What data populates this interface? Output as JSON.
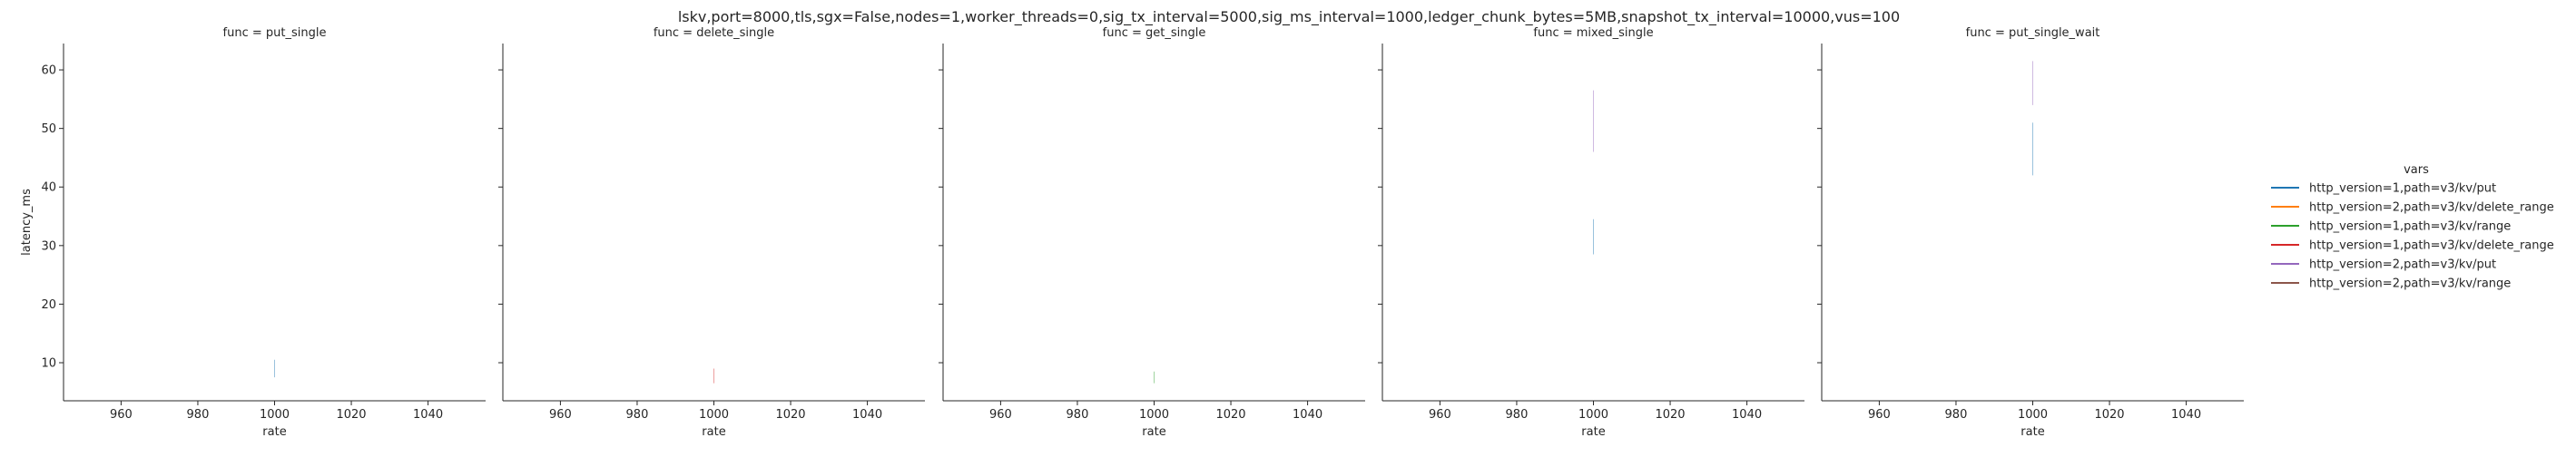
{
  "title": "lskv,port=8000,tls,sgx=False,nodes=1,worker_threads=0,sig_tx_interval=5000,sig_ms_interval=1000,ledger_chunk_bytes=5MB,snapshot_tx_interval=10000,vus=100",
  "chart_data": {
    "type": "line",
    "title": "lskv,port=8000,tls,sgx=False,nodes=1,worker_threads=0,sig_tx_interval=5000,sig_ms_interval=1000,ledger_chunk_bytes=5MB,snapshot_tx_interval=10000,vus=100",
    "xlabel": "rate",
    "ylabel": "latency_ms",
    "xlim": [
      945,
      1055
    ],
    "ylim": [
      3.5,
      64.5
    ],
    "xticks": [
      960,
      980,
      1000,
      1020,
      1040
    ],
    "yticks": [
      10,
      20,
      30,
      40,
      50,
      60
    ],
    "grid": false,
    "legend": {
      "title": "vars",
      "placement": "right",
      "entries": [
        {
          "label": "http_version=1,path=v3/kv/put",
          "color": "#1f77b4"
        },
        {
          "label": "http_version=2,path=v3/kv/delete_range",
          "color": "#ff7f0e"
        },
        {
          "label": "http_version=1,path=v3/kv/range",
          "color": "#2ca02c"
        },
        {
          "label": "http_version=1,path=v3/kv/delete_range",
          "color": "#d62728"
        },
        {
          "label": "http_version=2,path=v3/kv/put",
          "color": "#9467bd"
        },
        {
          "label": "http_version=2,path=v3/kv/range",
          "color": "#8c564b"
        }
      ]
    },
    "panels": [
      {
        "title": "func = put_single",
        "segments": [
          {
            "x": 1000,
            "y0": 7.5,
            "y1": 10.5,
            "color": "#1f77b4"
          }
        ]
      },
      {
        "title": "func = delete_single",
        "segments": [
          {
            "x": 1000,
            "y0": 6.5,
            "y1": 9.0,
            "color": "#d62728"
          }
        ]
      },
      {
        "title": "func = get_single",
        "segments": [
          {
            "x": 1000,
            "y0": 6.5,
            "y1": 8.5,
            "color": "#2ca02c"
          }
        ]
      },
      {
        "title": "func = mixed_single",
        "segments": [
          {
            "x": 1000,
            "y0": 46.0,
            "y1": 56.5,
            "color": "#9467bd"
          },
          {
            "x": 1000,
            "y0": 28.5,
            "y1": 34.5,
            "color": "#1f77b4"
          }
        ]
      },
      {
        "title": "func = put_single_wait",
        "segments": [
          {
            "x": 1000,
            "y0": 54.0,
            "y1": 61.5,
            "color": "#9467bd"
          },
          {
            "x": 1000,
            "y0": 42.0,
            "y1": 51.0,
            "color": "#1f77b4"
          }
        ]
      }
    ]
  }
}
